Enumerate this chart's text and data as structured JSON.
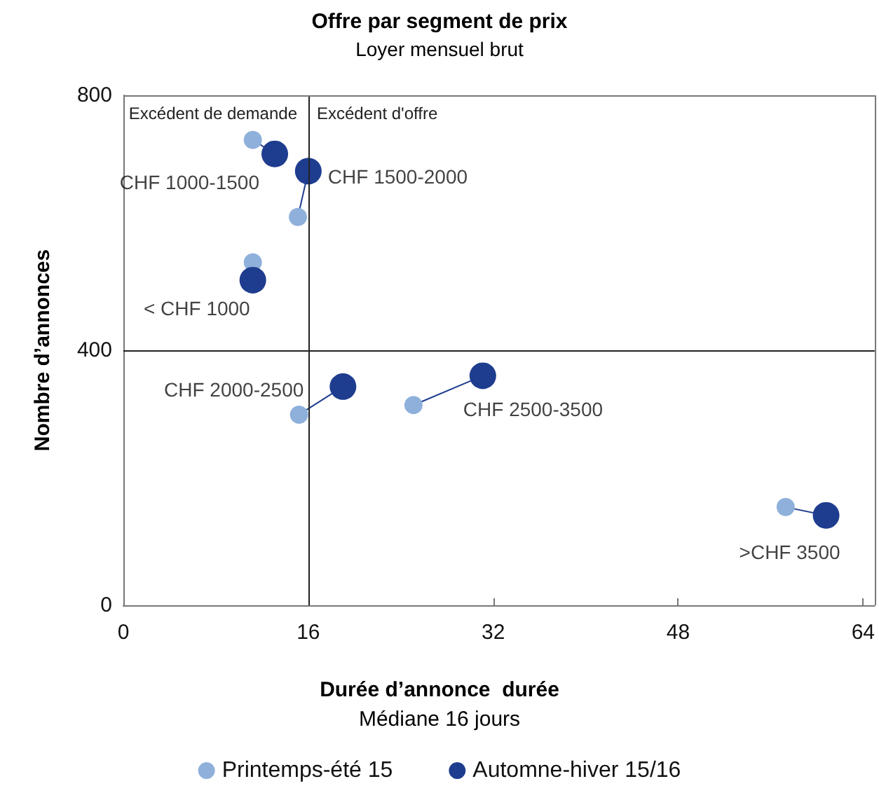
{
  "chart_data": {
    "type": "scatter",
    "title": "Offre par segment de prix",
    "subtitle": "Loyer mensuel brut",
    "xlabel": "Durée d’annonce  durée\nMédiane 16 jours",
    "ylabel": "Nombre d’annonces",
    "series": [
      {
        "name": "Printemps-été 15",
        "color": "#8eb0db",
        "x": [
          11.2,
          11.2,
          15.1,
          15.2,
          25.1,
          57.3
        ],
        "values": [
          538,
          730,
          609,
          299,
          314,
          154
        ]
      },
      {
        "name": "Automne-hiver 15/16",
        "color": "#1f3d8f",
        "x": [
          11.2,
          13.1,
          16.0,
          19.0,
          31.1,
          60.8
        ],
        "values": [
          510,
          708,
          681,
          343,
          360,
          141
        ]
      }
    ],
    "xlim": [
      0,
      65
    ],
    "xticks": [
      0,
      16,
      32,
      48,
      64
    ],
    "ylim": [
      0,
      800
    ],
    "yticks": [
      0,
      400,
      800
    ],
    "ref_lines": [
      {
        "axis": "x",
        "value": 16
      },
      {
        "axis": "y",
        "value": 400
      }
    ],
    "annotations": [
      "Excédent de demande",
      "Excédent d'offre",
      {
        "text": "< CHF 1000",
        "x": 11.2,
        "y": 510
      },
      {
        "text": "CHF 1000-1500",
        "x": 13.1,
        "y": 708
      },
      {
        "text": "CHF 1500-2000",
        "x": 16.0,
        "y": 681
      },
      {
        "text": "CHF 2000-2500",
        "x": 19.0,
        "y": 343
      },
      {
        "text": "CHF 2500-3500",
        "x": 31.1,
        "y": 360
      },
      {
        "text": ">CHF 3500",
        "x": 60.8,
        "y": 141
      }
    ],
    "grid": false,
    "legend": "bottom",
    "marker": "circle"
  }
}
